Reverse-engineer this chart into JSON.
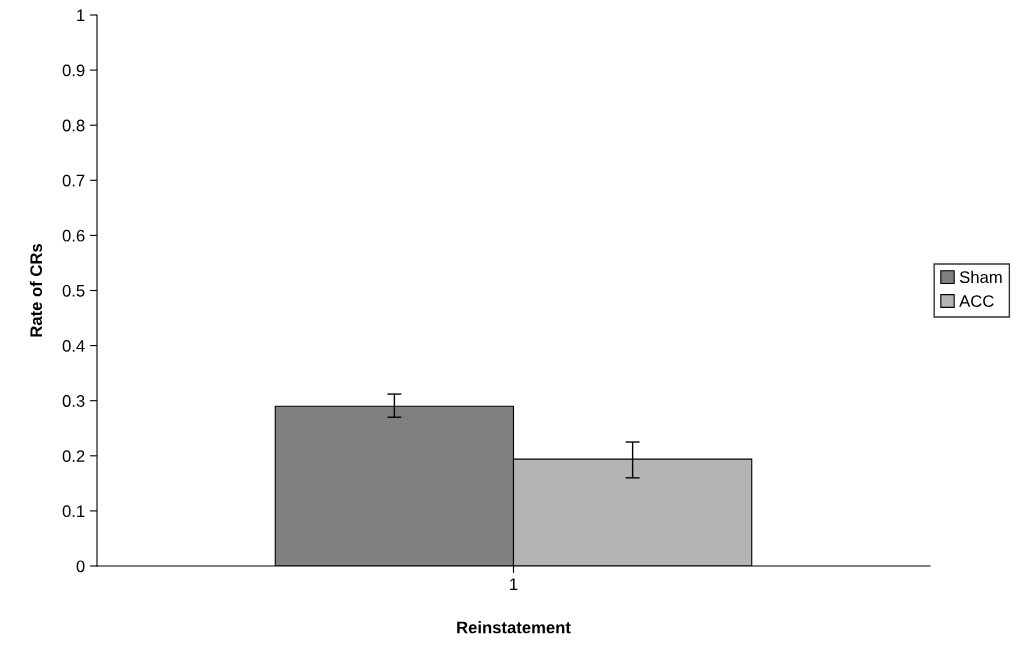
{
  "chart_data": {
    "type": "bar",
    "xlabel": "Reinstatement",
    "ylabel": "Rate of CRs",
    "categories": [
      "1"
    ],
    "series": [
      {
        "name": "Sham",
        "color": "#808080",
        "values": [
          0.29
        ],
        "errors": [
          [
            0.27,
            0.312
          ]
        ]
      },
      {
        "name": "ACC",
        "color": "#b4b4b4",
        "values": [
          0.194
        ],
        "errors": [
          [
            0.16,
            0.225
          ]
        ]
      }
    ],
    "ylim": [
      0,
      1
    ],
    "yticks": [
      0,
      0.1,
      0.2,
      0.3,
      0.4,
      0.5,
      0.6,
      0.7,
      0.8,
      0.9,
      1
    ],
    "legend": "right"
  }
}
